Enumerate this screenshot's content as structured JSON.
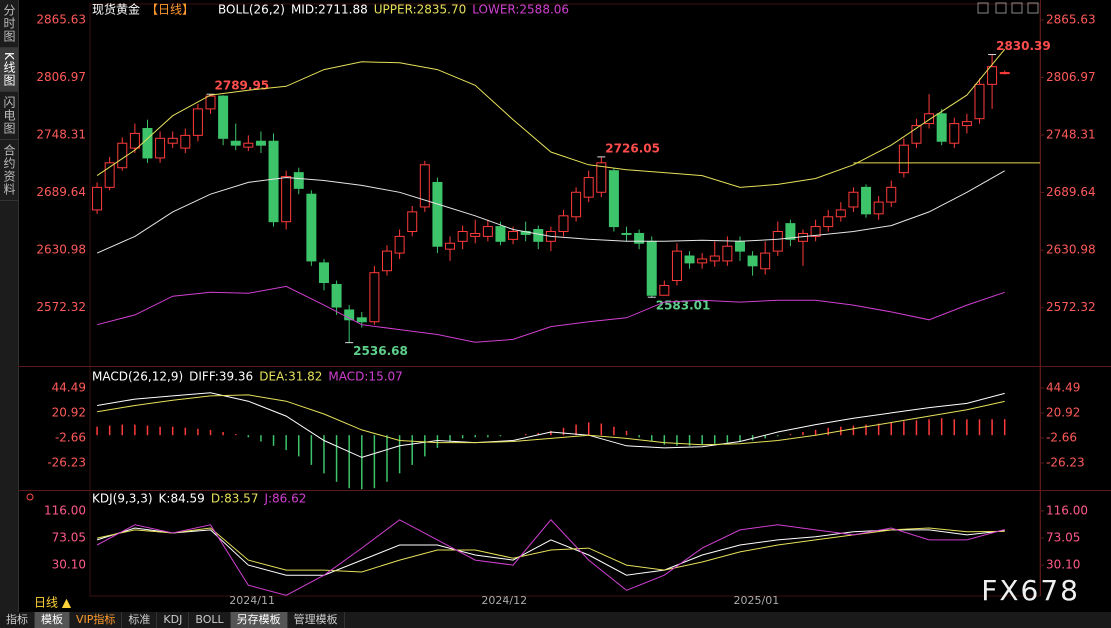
{
  "ui": {
    "sidebar": [
      "分时图",
      "K线图",
      "闪电图",
      "合约资料"
    ],
    "period": "日线 ▲",
    "toolbar": [
      "指标",
      "模板",
      "VIP指标",
      "标准",
      "KDJ",
      "BOLL",
      "另存模板",
      "管理模板"
    ],
    "watermark": "FX678"
  },
  "chart_data": [
    {
      "type": "candlestick",
      "legend": [
        {
          "text": "现货黄金",
          "color": "#ffffff"
        },
        {
          "text": "【日线】",
          "color": "#ff9a2e"
        },
        {
          "text": "BOLL(26,2)",
          "color": "#ffffff"
        },
        {
          "text": "MID:2711.88",
          "color": "#ffffff"
        },
        {
          "text": "UPPER:2835.70",
          "color": "#e6e05a"
        },
        {
          "text": "LOWER:2588.06",
          "color": "#d040d0"
        }
      ],
      "xlim": [
        -0.56,
        74.8
      ],
      "ylim": [
        2513.9,
        2880.9
      ],
      "yticks": [
        2572.32,
        2630.98,
        2689.64,
        2748.31,
        2806.97,
        2865.63
      ],
      "up_color": "#ff3b3b",
      "down_color": "#3dc46a",
      "open": [
        2672,
        2695,
        2715,
        2735,
        2755,
        2725,
        2740,
        2735,
        2748,
        2775,
        2788,
        2742,
        2736,
        2742,
        2742,
        2660,
        2710,
        2688,
        2618,
        2596,
        2570,
        2562,
        2558,
        2610,
        2628,
        2650,
        2675,
        2700,
        2632,
        2640,
        2645,
        2645,
        2655,
        2642,
        2650,
        2652,
        2640,
        2650,
        2665,
        2685,
        2690,
        2712,
        2648,
        2648,
        2640,
        2585,
        2600,
        2625,
        2618,
        2620,
        2620,
        2640,
        2625,
        2612,
        2630,
        2658,
        2640,
        2645,
        2655,
        2665,
        2675,
        2695,
        2668,
        2680,
        2710,
        2740,
        2760,
        2770,
        2740,
        2758,
        2765,
        2800,
        2812
      ],
      "high": [
        2700,
        2726,
        2746,
        2760,
        2764,
        2752,
        2752,
        2755,
        2780,
        2789.95,
        2789,
        2760,
        2748,
        2752,
        2750,
        2712,
        2715,
        2692,
        2622,
        2600,
        2575,
        2568,
        2615,
        2636,
        2652,
        2676,
        2722,
        2705,
        2645,
        2656,
        2662,
        2662,
        2660,
        2655,
        2660,
        2656,
        2655,
        2672,
        2695,
        2712,
        2726.05,
        2715,
        2655,
        2652,
        2645,
        2600,
        2638,
        2630,
        2628,
        2640,
        2645,
        2645,
        2630,
        2640,
        2660,
        2662,
        2652,
        2662,
        2672,
        2680,
        2695,
        2698,
        2686,
        2702,
        2745,
        2765,
        2790,
        2775,
        2766,
        2770,
        2806,
        2830.39,
        2814
      ],
      "low": [
        2668,
        2692,
        2712,
        2730,
        2720,
        2720,
        2735,
        2730,
        2742,
        2770,
        2738,
        2733,
        2732,
        2730,
        2655,
        2652,
        2688,
        2615,
        2590,
        2565,
        2536.68,
        2552,
        2555,
        2605,
        2622,
        2645,
        2670,
        2628,
        2620,
        2632,
        2638,
        2640,
        2636,
        2637,
        2640,
        2632,
        2630,
        2645,
        2660,
        2680,
        2685,
        2650,
        2640,
        2632,
        2583.01,
        2586,
        2595,
        2612,
        2612,
        2614,
        2615,
        2620,
        2605,
        2606,
        2625,
        2635,
        2615,
        2640,
        2650,
        2660,
        2670,
        2664,
        2662,
        2675,
        2705,
        2735,
        2755,
        2738,
        2735,
        2750,
        2760,
        2775,
        2810
      ],
      "close": [
        2695,
        2720,
        2740,
        2750,
        2725,
        2745,
        2745,
        2748,
        2775,
        2788,
        2745,
        2738,
        2740,
        2738,
        2660,
        2706,
        2694,
        2620,
        2598,
        2573,
        2560,
        2558,
        2608,
        2630,
        2645,
        2670,
        2718,
        2635,
        2638,
        2650,
        2648,
        2655,
        2640,
        2650,
        2647,
        2640,
        2650,
        2666,
        2690,
        2705,
        2720,
        2655,
        2647,
        2638,
        2585,
        2595,
        2630,
        2618,
        2622,
        2625,
        2635,
        2630,
        2615,
        2628,
        2650,
        2642,
        2648,
        2655,
        2665,
        2672,
        2690,
        2668,
        2680,
        2695,
        2738,
        2758,
        2770,
        2742,
        2760,
        2762,
        2800,
        2818,
        2812
      ],
      "lines": [
        {
          "color": "#e6e6e6",
          "x": [
            0,
            3,
            6,
            9,
            12,
            15,
            18,
            21,
            24,
            27,
            30,
            33,
            36,
            39,
            42,
            45,
            48,
            51,
            54,
            57,
            60,
            63,
            66,
            69,
            72
          ],
          "values": [
            2628,
            2645,
            2670,
            2688,
            2700,
            2705,
            2702,
            2697,
            2690,
            2678,
            2666,
            2652,
            2645,
            2642,
            2640,
            2640,
            2641,
            2640,
            2642,
            2646,
            2650,
            2656,
            2670,
            2690,
            2711.88
          ]
        },
        {
          "color": "#e6e05a",
          "x": [
            0,
            3,
            6,
            9,
            12,
            15,
            18,
            21,
            24,
            27,
            30,
            33,
            36,
            39,
            42,
            45,
            48,
            51,
            54,
            57,
            60,
            63,
            66,
            69,
            72
          ],
          "values": [
            2707,
            2733,
            2768,
            2789,
            2794,
            2798,
            2815,
            2823,
            2822,
            2815,
            2799,
            2764,
            2731,
            2718,
            2713,
            2710,
            2707,
            2695,
            2698,
            2704,
            2718,
            2738,
            2764,
            2789,
            2835.7
          ]
        },
        {
          "color": "#d040d0",
          "x": [
            0,
            3,
            6,
            9,
            12,
            15,
            18,
            21,
            24,
            27,
            30,
            33,
            36,
            39,
            42,
            45,
            48,
            51,
            54,
            57,
            60,
            63,
            66,
            69,
            72
          ],
          "values": [
            2555,
            2565,
            2584,
            2588,
            2587,
            2594,
            2575,
            2555,
            2550,
            2545,
            2537,
            2540,
            2553,
            2558,
            2562,
            2578,
            2580,
            2578,
            2580,
            2580,
            2575,
            2568,
            2560,
            2575,
            2588.06
          ]
        }
      ],
      "annotations": [
        {
          "x": 9,
          "value": 2789.95,
          "color": "#ff4d4d"
        },
        {
          "x": 20,
          "value": 2536.68,
          "color": "#5fd08a"
        },
        {
          "x": 40,
          "value": 2726.05,
          "color": "#ff4d4d"
        },
        {
          "x": 44,
          "value": 2583.01,
          "color": "#5fd08a"
        },
        {
          "x": 71,
          "value": 2830.39,
          "color": "#ff4d4d"
        }
      ],
      "hline": {
        "x": 60,
        "value": 2720,
        "color": "#e6d84a"
      }
    },
    {
      "type": "macd",
      "legend": [
        {
          "text": "MACD(26,12,9)",
          "color": "#ffffff"
        },
        {
          "text": "DIFF:39.36",
          "color": "#ffffff"
        },
        {
          "text": "DEA:31.82",
          "color": "#e6e05a"
        },
        {
          "text": "MACD:15.07",
          "color": "#d040d0"
        }
      ],
      "xlim": [
        -0.56,
        74.8
      ],
      "ylim": [
        -51.7,
        63.35
      ],
      "yticks": [
        -26.23,
        -2.66,
        20.92,
        44.49
      ],
      "up_color": "#ff3b3b",
      "down_color": "#3dc46a",
      "bars": [
        8,
        9,
        10,
        10,
        9,
        8,
        8,
        7,
        6,
        5,
        3,
        1,
        -2,
        -6,
        -10,
        -14,
        -20,
        -28,
        -36,
        -44,
        -50,
        -51,
        -50,
        -44,
        -36,
        -28,
        -20,
        -12,
        -6,
        -3,
        -2,
        -2,
        -1,
        0,
        1,
        2,
        4,
        7,
        10,
        12,
        11,
        8,
        4,
        -2,
        -6,
        -9,
        -10,
        -10,
        -9,
        -8,
        -7,
        -6,
        -5,
        -3,
        -1,
        1,
        3,
        5,
        7,
        8,
        9,
        10,
        11,
        12,
        13,
        14,
        15,
        16,
        15,
        15,
        15,
        15,
        15.07
      ],
      "lines": [
        {
          "color": "#ffffff",
          "x": [
            0,
            3,
            6,
            9,
            12,
            15,
            18,
            21,
            24,
            27,
            30,
            33,
            36,
            39,
            42,
            45,
            48,
            51,
            54,
            57,
            60,
            63,
            66,
            69,
            72
          ],
          "values": [
            28,
            34,
            37,
            40,
            32,
            18,
            -5,
            -21,
            -10,
            -5,
            -7,
            -5,
            3,
            0,
            -10,
            -12,
            -11,
            -6,
            3,
            10,
            16,
            21,
            26,
            30,
            39.36
          ]
        },
        {
          "color": "#e6e05a",
          "x": [
            0,
            3,
            6,
            9,
            12,
            15,
            18,
            21,
            24,
            27,
            30,
            33,
            36,
            39,
            42,
            45,
            48,
            51,
            54,
            57,
            60,
            63,
            66,
            69,
            72
          ],
          "values": [
            22,
            28,
            33,
            37,
            38,
            32,
            20,
            5,
            -5,
            -7,
            -7,
            -6,
            -3,
            0,
            -3,
            -7,
            -9,
            -8,
            -5,
            0,
            6,
            12,
            18,
            24,
            31.82
          ]
        }
      ]
    },
    {
      "type": "kdj",
      "legend": [
        {
          "text": "KDJ(9,3,3)",
          "color": "#ffffff"
        },
        {
          "text": "K:84.59",
          "color": "#ffffff"
        },
        {
          "text": "D:83.57",
          "color": "#e6e05a"
        },
        {
          "text": "J:86.62",
          "color": "#d040d0"
        }
      ],
      "xlim": [
        -0.56,
        74.8
      ],
      "ylim": [
        -19.1,
        146.2
      ],
      "yticks": [
        {
          "value": 30.1,
          "label": "30.10"
        },
        73.05,
        {
          "value": 116,
          "label": "116.00"
        }
      ],
      "xticks": [
        {
          "value": 12.3,
          "label": "2024/11"
        },
        {
          "value": 32.3,
          "label": "2024/12"
        },
        {
          "value": 52.3,
          "label": "2025/01"
        }
      ],
      "lines": [
        {
          "color": "#ffffff",
          "x": [
            0,
            3,
            6,
            9,
            12,
            15,
            18,
            21,
            24,
            27,
            30,
            33,
            36,
            39,
            42,
            45,
            48,
            51,
            54,
            57,
            60,
            63,
            66,
            69,
            72
          ],
          "values": [
            70,
            89,
            81,
            86,
            30,
            14,
            14,
            38,
            62,
            62,
            46,
            38,
            70,
            46,
            14,
            22,
            46,
            62,
            70,
            75,
            83,
            86,
            86,
            78,
            84.59
          ]
        },
        {
          "color": "#e6e05a",
          "x": [
            0,
            3,
            6,
            9,
            12,
            15,
            18,
            21,
            24,
            27,
            30,
            33,
            36,
            39,
            42,
            45,
            48,
            51,
            54,
            57,
            60,
            63,
            66,
            69,
            72
          ],
          "values": [
            73,
            86,
            81,
            89,
            38,
            22,
            22,
            19,
            38,
            54,
            54,
            41,
            54,
            57,
            30,
            22,
            35,
            51,
            62,
            70,
            78,
            86,
            89,
            83,
            83.57
          ]
        },
        {
          "color": "#d040d0",
          "x": [
            0,
            3,
            6,
            9,
            12,
            15,
            18,
            21,
            24,
            27,
            30,
            33,
            36,
            39,
            42,
            45,
            48,
            51,
            54,
            57,
            60,
            63,
            66,
            69,
            72
          ],
          "values": [
            62,
            94,
            81,
            94,
            -2,
            -18,
            14,
            57,
            102,
            70,
            38,
            30,
            102,
            38,
            -10,
            14,
            57,
            86,
            94,
            86,
            78,
            89,
            70,
            70,
            86.62
          ]
        }
      ]
    }
  ]
}
